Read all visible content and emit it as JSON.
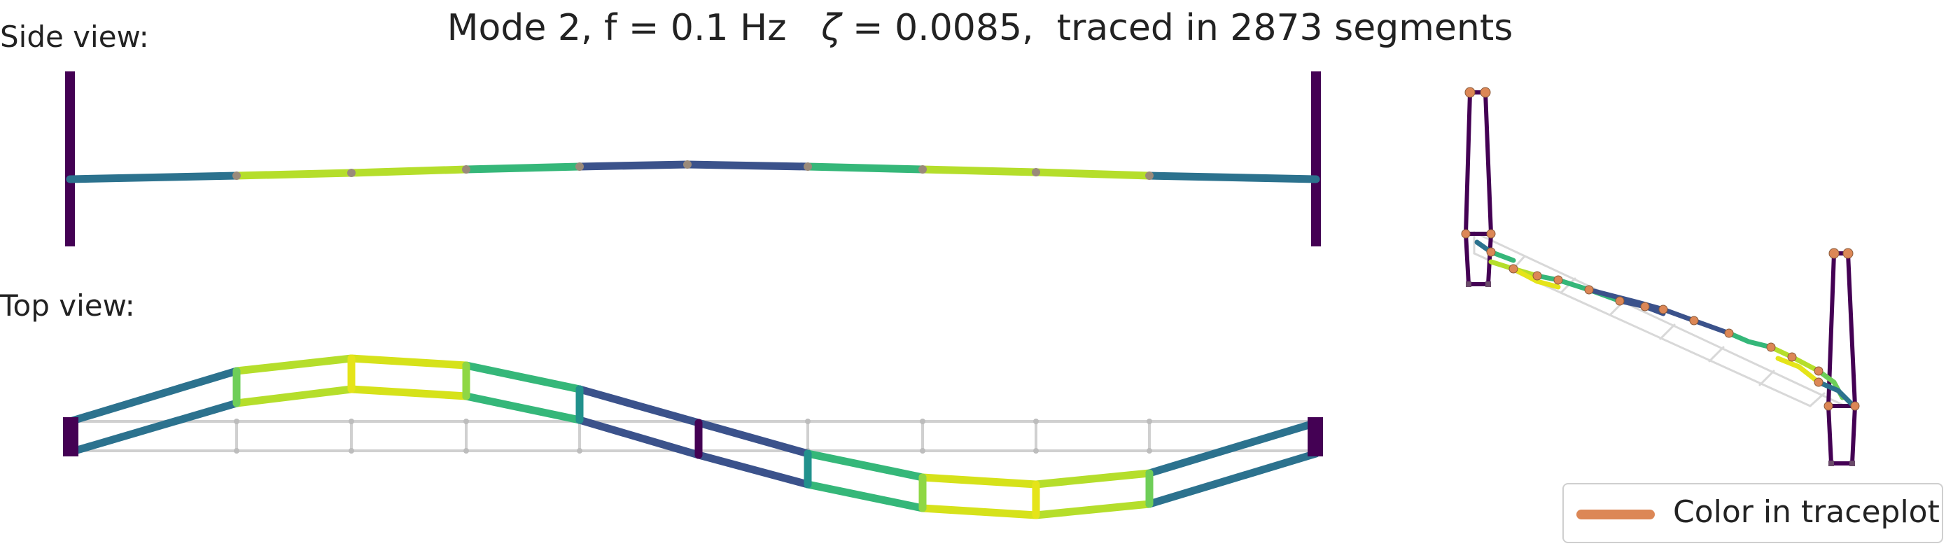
{
  "title": {
    "mode_text": "Mode 2, f = 0.1 Hz",
    "zeta_symbol": "ζ",
    "zeta_text": " = 0.0085,  traced in 2873 segments"
  },
  "panels": {
    "side_label": "Side view:",
    "top_label": "Top view:"
  },
  "legend": {
    "label": "Color in traceplot",
    "swatch_color": "#dc8756"
  },
  "colors": {
    "tower": "#440154",
    "viridis_dark_blue": "#3b528b",
    "viridis_teal": "#2c728e",
    "viridis_green": "#35b779",
    "viridis_lime": "#b5de2b",
    "viridis_yellow": "#e5e419",
    "grid": "#d0d0d0",
    "node": "#9a8a7a",
    "node_3d": "#dc8756"
  }
}
